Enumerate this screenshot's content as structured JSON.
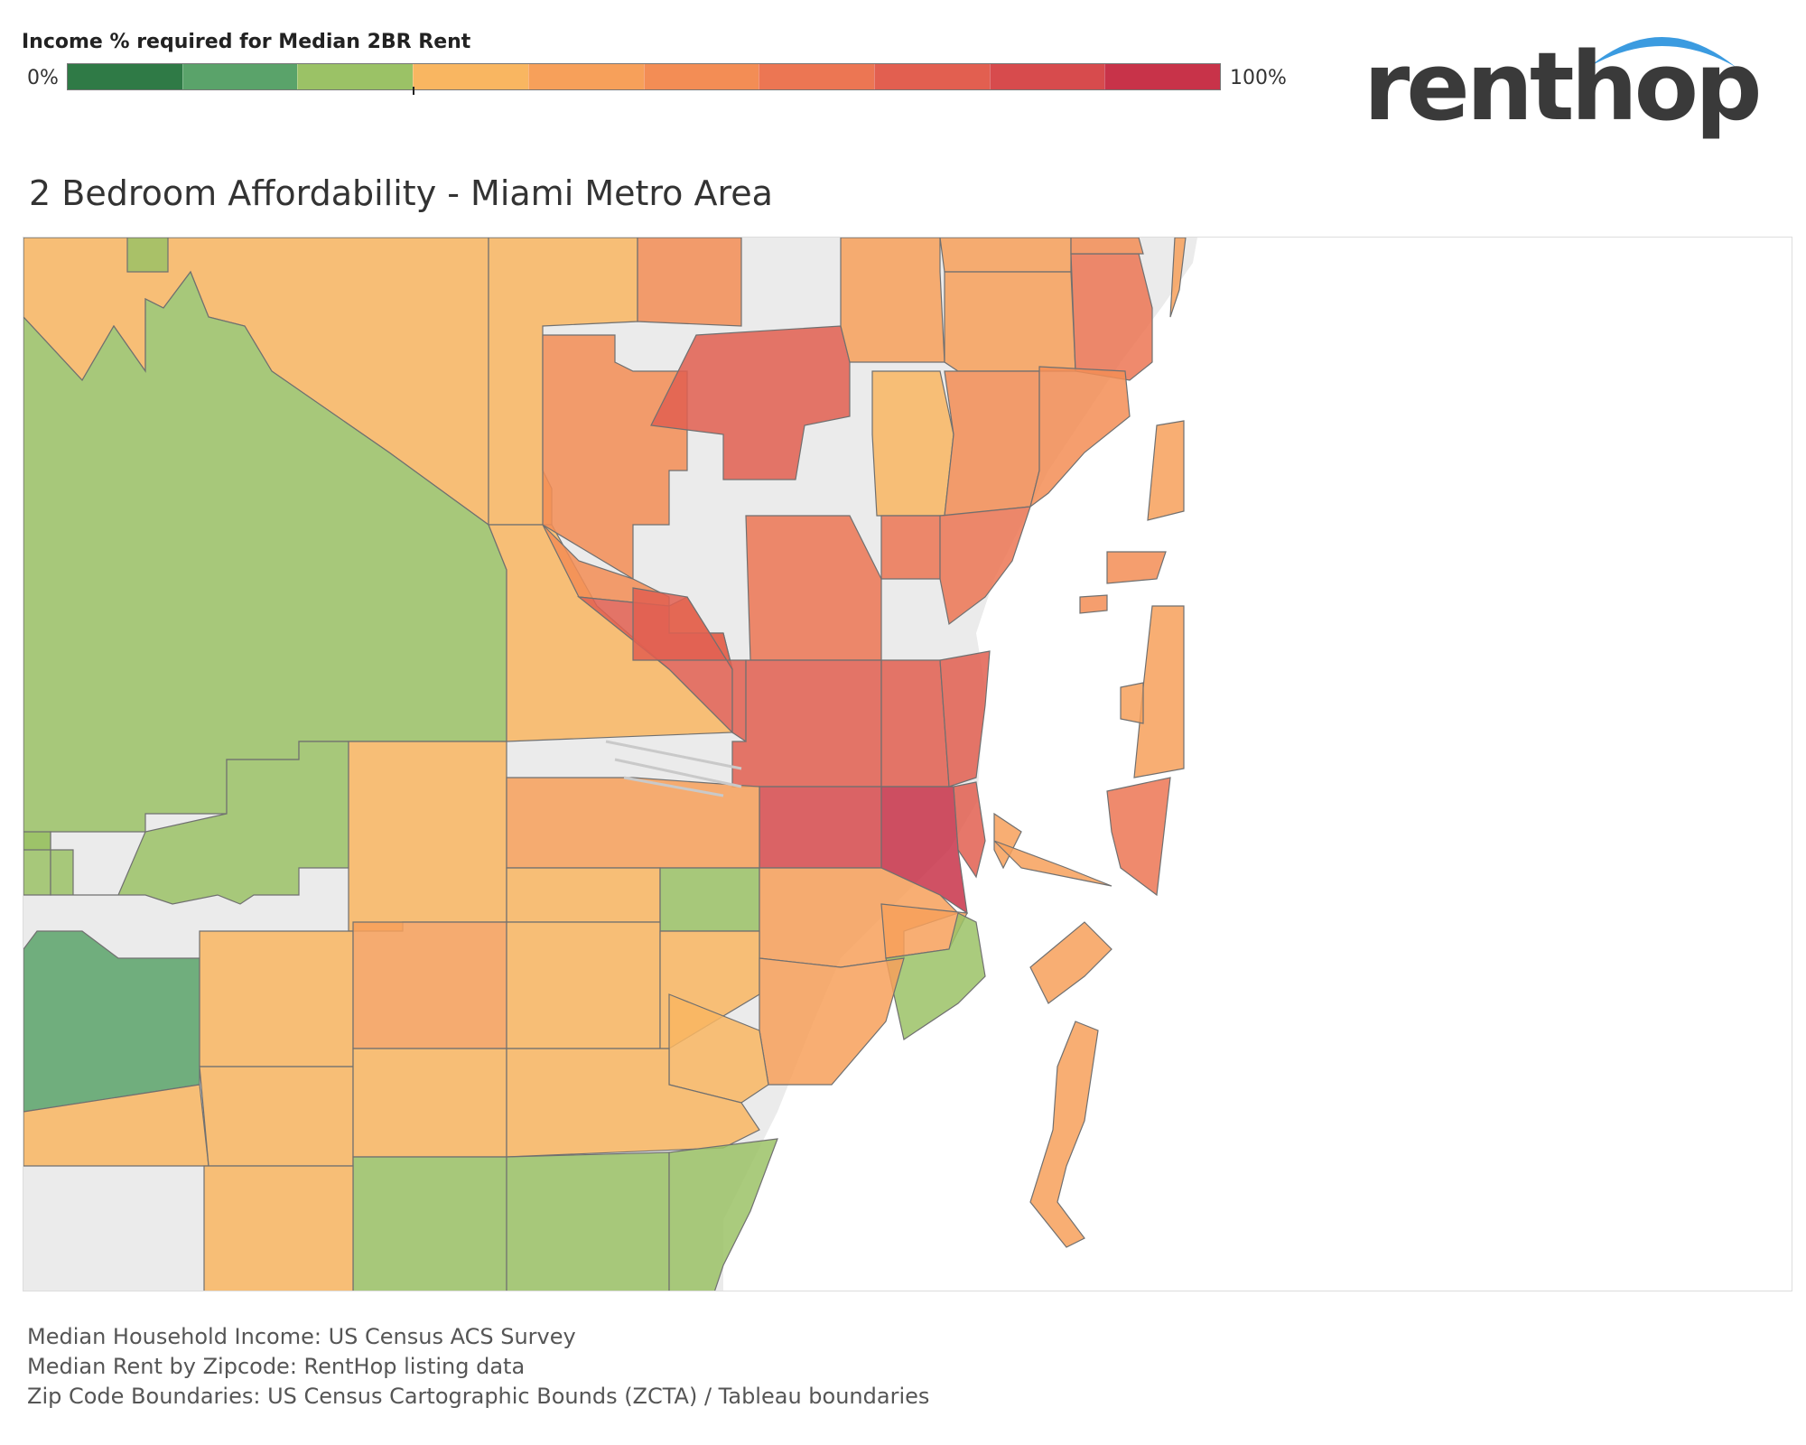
{
  "legend": {
    "title": "Income % required for Median 2BR Rent",
    "min_label": "0%",
    "max_label": "100%",
    "steps": [
      "#2f7a46",
      "#5aa36a",
      "#9bc266",
      "#f9b661",
      "#f7a05a",
      "#f38d55",
      "#ec7653",
      "#e25f50",
      "#d74b4d",
      "#c83349"
    ]
  },
  "brand": {
    "name": "renthop",
    "accent_color": "#3b9be0"
  },
  "title": "2 Bedroom Affordability - Miami Metro Area",
  "map": {
    "land_color": "#ebebeb",
    "water_color": "#ffffff",
    "border_color": "#707070"
  },
  "sources": [
    "Median Household Income: US Census ACS Survey",
    "Median Rent by Zipcode: RentHop listing data",
    "Zip Code Boundaries: US Census Cartographic Bounds (ZCTA) / Tableau boundaries"
  ]
}
